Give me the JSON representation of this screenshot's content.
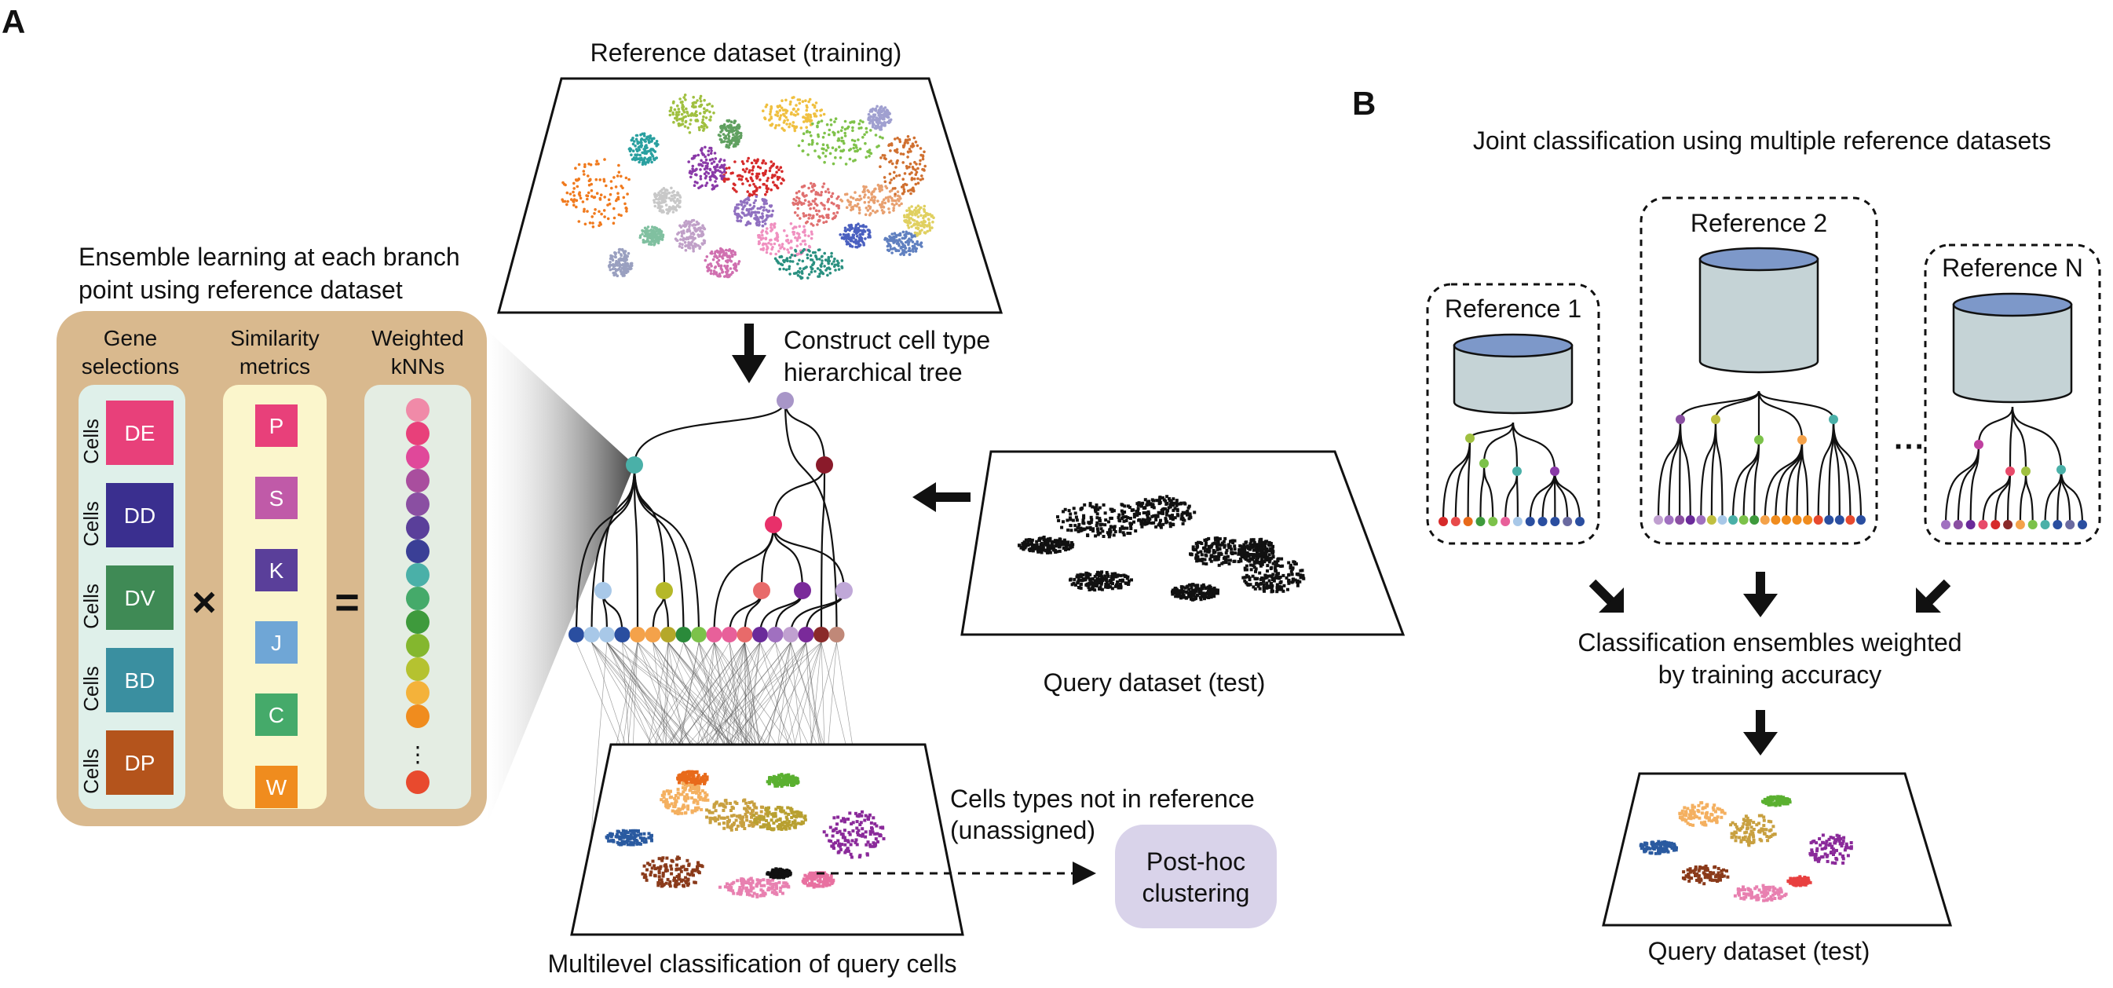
{
  "panel_a": {
    "label": "A",
    "reference_title": "Reference dataset (training)",
    "construct_label_1": "Construct cell type",
    "construct_label_2": "hierarchical tree",
    "ensemble_title_1": "Ensemble learning at each branch",
    "ensemble_title_2": "point using reference dataset",
    "col_gene_1": "Gene",
    "col_gene_2": "selections",
    "col_sim_1": "Similarity",
    "col_sim_2": "metrics",
    "col_knn_1": "Weighted",
    "col_knn_2": "kNNs",
    "cells_label": "Cells",
    "gene_selections": [
      {
        "label": "DE",
        "color": "#e8407a"
      },
      {
        "label": "DD",
        "color": "#3a2f8f"
      },
      {
        "label": "DV",
        "color": "#3f8a55"
      },
      {
        "label": "BD",
        "color": "#3a8fa0"
      },
      {
        "label": "DP",
        "color": "#b4541c"
      }
    ],
    "similarity_metrics": [
      {
        "label": "P",
        "color": "#e8407a"
      },
      {
        "label": "S",
        "color": "#c05aa8"
      },
      {
        "label": "K",
        "color": "#5a3f9a"
      },
      {
        "label": "J",
        "color": "#6fa6d6"
      },
      {
        "label": "C",
        "color": "#45aa6a"
      },
      {
        "label": "W",
        "color": "#f08c1e"
      }
    ],
    "times_symbol": "×",
    "equals_symbol": "=",
    "knn_dots": [
      "#f08aa8",
      "#e8407a",
      "#e0489a",
      "#a94e9e",
      "#8a4fa2",
      "#5a3f9a",
      "#3a3f96",
      "#4ab0a8",
      "#45aa6a",
      "#3e9a3c",
      "#84b72e",
      "#b5c230",
      "#f4b23a",
      "#f08c1e",
      "#e84a2e"
    ],
    "knn_ellipsis": "⋮",
    "query_title": "Query dataset (test)",
    "unassigned_label_1": "Cells types not in reference",
    "unassigned_label_2": "(unassigned)",
    "posthoc_label_1": "Post-hoc",
    "posthoc_label_2": "clustering",
    "multilevel_label": "Multilevel classification of query cells"
  },
  "panel_b": {
    "label": "B",
    "title": "Joint classification using multiple reference datasets",
    "references": [
      {
        "label": "Reference 1"
      },
      {
        "label": "Reference 2"
      },
      {
        "label": "Reference N"
      }
    ],
    "ellipsis": "···",
    "ensemble_label_1": "Classification ensembles weighted",
    "ensemble_label_2": "by training accuracy",
    "query_title": "Query dataset (test)"
  },
  "colors": {
    "ensemble_bg": "#d9b98e",
    "gene_col_bg": "#dff0ea",
    "sim_col_bg": "#fbf6cc",
    "knn_col_bg": "#e4ede3",
    "posthoc_bg": "#d9d3ea",
    "cylinder_top": "#7d98c9",
    "cylinder_body": "#c5d3d6"
  }
}
